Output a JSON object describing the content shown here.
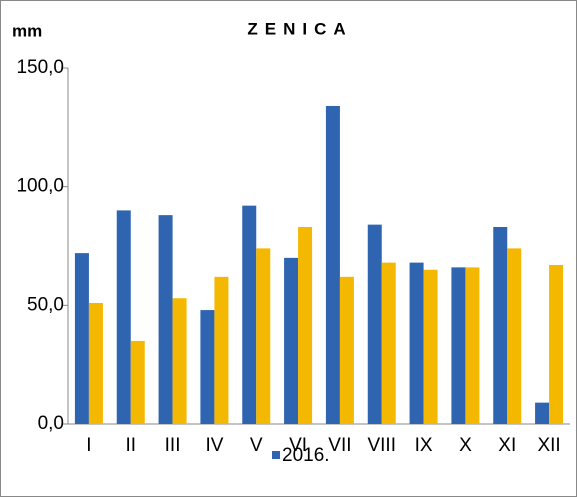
{
  "chart_data": {
    "type": "bar",
    "title": "ZENICA",
    "y_label": "mm",
    "categories": [
      "I",
      "II",
      "III",
      "IV",
      "V",
      "VI",
      "VII",
      "VIII",
      "IX",
      "X",
      "XI",
      "XII"
    ],
    "series": [
      {
        "name": "2016.",
        "color": "#2e64b0",
        "values": [
          72,
          90,
          88,
          48,
          92,
          70,
          134,
          84,
          68,
          66,
          83,
          9
        ]
      },
      {
        "color": "#f5b800",
        "values": [
          51,
          35,
          53,
          62,
          74,
          83,
          62,
          68,
          65,
          66,
          74,
          67
        ]
      }
    ],
    "ylim": [
      0,
      150
    ],
    "yticks": [
      {
        "value": 0,
        "label": "0,0"
      },
      {
        "value": 50,
        "label": "50,0"
      },
      {
        "value": 100,
        "label": "100,0"
      },
      {
        "value": 150,
        "label": "150,0"
      }
    ],
    "grid": false,
    "legend": "bottom"
  }
}
